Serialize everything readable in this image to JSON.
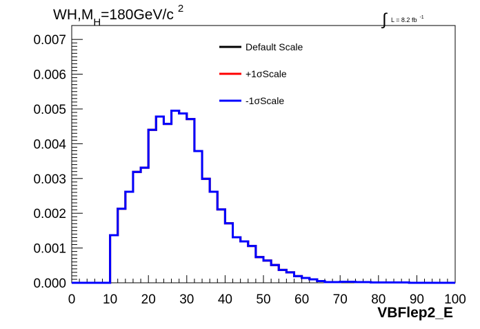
{
  "title": {
    "prefix": "WH,M",
    "subscript": "H",
    "middle": "=180GeV/c",
    "superscript": "2"
  },
  "luminosity": {
    "integral_symbol": "∫",
    "text": "L = 8.2 fb",
    "superscript": "-1"
  },
  "colors": {
    "default": "#000000",
    "plus": "#ff0000",
    "minus": "#0000ff"
  },
  "chart_data": {
    "type": "line",
    "style": "step-histogram",
    "xlabel": "VBFlep2_E",
    "ylabel": "",
    "xlim": [
      0,
      100
    ],
    "ylim": [
      0,
      0.0074
    ],
    "x_ticks": [
      "0",
      "10",
      "20",
      "30",
      "40",
      "50",
      "60",
      "70",
      "80",
      "90",
      "100"
    ],
    "y_ticks": [
      "0.000",
      "0.001",
      "0.002",
      "0.003",
      "0.004",
      "0.005",
      "0.006",
      "0.007"
    ],
    "grid": false,
    "legend_position": "top-center",
    "bin_width": 2,
    "bin_edges_start": 0,
    "series": [
      {
        "name": "Default Scale",
        "color": "#000000",
        "values": [
          0,
          0,
          0,
          0,
          0,
          0.00137,
          0.00213,
          0.00262,
          0.00319,
          0.00331,
          0.0044,
          0.00478,
          0.00457,
          0.00495,
          0.00487,
          0.00471,
          0.00379,
          0.00299,
          0.00262,
          0.00211,
          0.00171,
          0.00131,
          0.00119,
          0.00106,
          0.00074,
          0.00064,
          0.00051,
          0.00037,
          0.0003,
          0.00019,
          0.00014,
          0.0001,
          5e-05,
          2e-05,
          2e-05,
          3e-05,
          3e-05,
          2e-05,
          2e-05,
          1e-05,
          1e-05,
          1e-05,
          1e-05,
          1e-05,
          0,
          0,
          0,
          0,
          0,
          0
        ]
      },
      {
        "name": "+1σScale",
        "color": "#ff0000",
        "values": [
          0,
          0,
          0,
          0,
          0,
          0.00137,
          0.00213,
          0.00262,
          0.00319,
          0.00331,
          0.0044,
          0.00478,
          0.00457,
          0.00495,
          0.00487,
          0.00471,
          0.00379,
          0.00299,
          0.00262,
          0.00211,
          0.00171,
          0.00131,
          0.00119,
          0.00106,
          0.00074,
          0.00064,
          0.00051,
          0.00037,
          0.0003,
          0.00019,
          0.00014,
          0.0001,
          5e-05,
          2e-05,
          2e-05,
          3e-05,
          3e-05,
          2e-05,
          2e-05,
          1e-05,
          1e-05,
          1e-05,
          1e-05,
          1e-05,
          0,
          0,
          0,
          0,
          0,
          0
        ]
      },
      {
        "name": "-1σScale",
        "color": "#0000ff",
        "values": [
          0,
          0,
          0,
          0,
          0,
          0.00137,
          0.00213,
          0.00262,
          0.00319,
          0.00331,
          0.0044,
          0.00478,
          0.00457,
          0.00495,
          0.00487,
          0.00471,
          0.00379,
          0.00299,
          0.00262,
          0.00211,
          0.00171,
          0.00131,
          0.00119,
          0.00106,
          0.00074,
          0.00064,
          0.00051,
          0.00037,
          0.0003,
          0.00019,
          0.00014,
          0.0001,
          5e-05,
          2e-05,
          2e-05,
          3e-05,
          3e-05,
          2e-05,
          2e-05,
          1e-05,
          1e-05,
          1e-05,
          1e-05,
          1e-05,
          0,
          0,
          0,
          0,
          0,
          0
        ]
      }
    ]
  }
}
